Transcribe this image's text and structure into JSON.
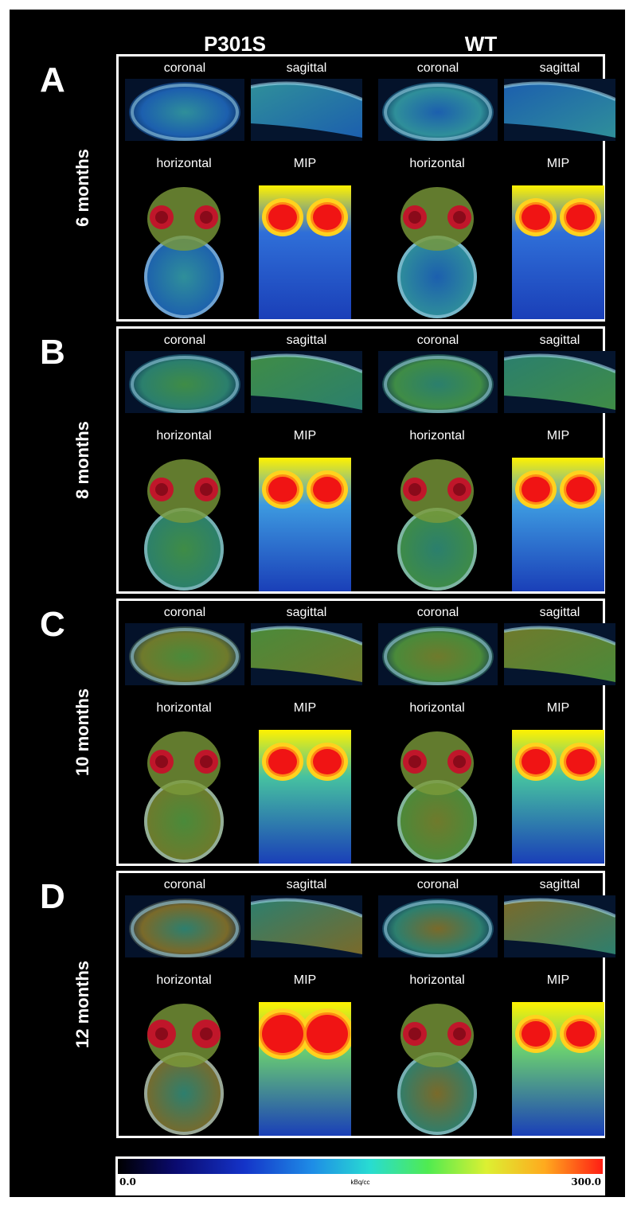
{
  "columns": {
    "left": "P301S",
    "right": "WT"
  },
  "view_labels": {
    "coronal": "coronal",
    "sagittal": "sagittal",
    "horizontal": "horizontal",
    "mip": "MIP"
  },
  "panels": [
    {
      "letter": "A",
      "age": "6 months"
    },
    {
      "letter": "B",
      "age": "8 months"
    },
    {
      "letter": "C",
      "age": "10 months"
    },
    {
      "letter": "D",
      "age": "12 months"
    }
  ],
  "colorbar": {
    "min": "0.0",
    "max": "300.0",
    "unit": "kBq/cc",
    "colors": [
      "#000000",
      "#0a0a70",
      "#1433c8",
      "#1e8ce6",
      "#28dcd2",
      "#50eb50",
      "#dcf032",
      "#ffaa1e",
      "#ff1e14"
    ]
  }
}
